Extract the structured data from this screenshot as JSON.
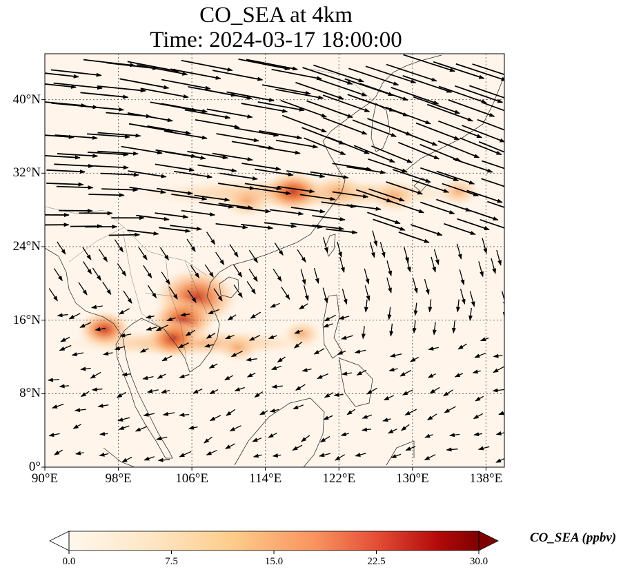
{
  "title": {
    "line1": "CO_SEA at 4km",
    "line2": "Time: 2024-03-17 18:00:00"
  },
  "map": {
    "lon_range": [
      90,
      140
    ],
    "lat_range": [
      0,
      45
    ],
    "lat_ticks": [
      {
        "value": 0,
        "label": "0°"
      },
      {
        "value": 8,
        "label": "8°N"
      },
      {
        "value": 16,
        "label": "16°N"
      },
      {
        "value": 24,
        "label": "24°N"
      },
      {
        "value": 32,
        "label": "32°N"
      },
      {
        "value": 40,
        "label": "40°N"
      }
    ],
    "lon_ticks": [
      {
        "value": 90,
        "label": "90°E"
      },
      {
        "value": 98,
        "label": "98°E"
      },
      {
        "value": 106,
        "label": "106°E"
      },
      {
        "value": 114,
        "label": "114°E"
      },
      {
        "value": 122,
        "label": "122°E"
      },
      {
        "value": 130,
        "label": "130°E"
      },
      {
        "value": 138,
        "label": "138°E"
      }
    ],
    "gridlines": true,
    "background_color": "#fff5eb",
    "high_concentration_regions": [
      {
        "lon": 106.5,
        "lat": 18.5,
        "value": 20
      },
      {
        "lon": 105.0,
        "lat": 16.0,
        "value": 14
      },
      {
        "lon": 104.0,
        "lat": 14.0,
        "value": 11
      },
      {
        "lon": 96.5,
        "lat": 15.0,
        "value": 10
      },
      {
        "lon": 117.0,
        "lat": 30.0,
        "value": 12
      },
      {
        "lon": 112.0,
        "lat": 29.0,
        "value": 9
      },
      {
        "lon": 122.0,
        "lat": 30.0,
        "value": 9
      },
      {
        "lon": 128.0,
        "lat": 29.5,
        "value": 8
      },
      {
        "lon": 135.0,
        "lat": 30.0,
        "value": 6
      },
      {
        "lon": 111.0,
        "lat": 13.0,
        "value": 6
      },
      {
        "lon": 118.0,
        "lat": 14.5,
        "value": 5
      }
    ],
    "wind_vectors_note": "westerly flow north of ~24N, weak easterly/northeasterly flow to the south"
  },
  "colorbar": {
    "colormap": "OrRd",
    "min": 0.0,
    "max": 30.0,
    "ticks": [
      "0.0",
      "7.5",
      "15.0",
      "22.5",
      "30.0"
    ],
    "label": "CO_SEA (ppbv)",
    "extend": "both"
  }
}
